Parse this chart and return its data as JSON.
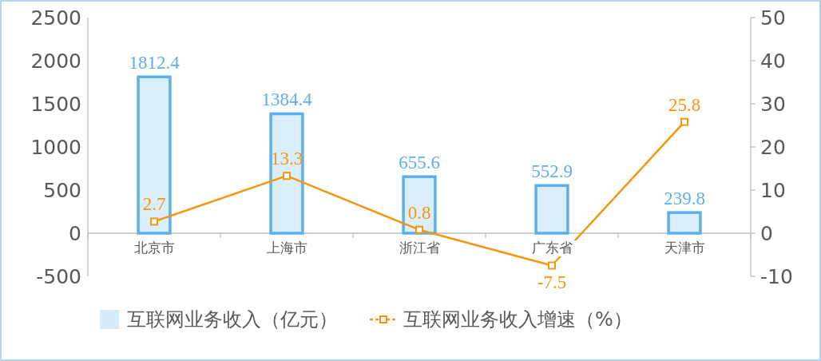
{
  "chart_data": {
    "type": "bar",
    "categories": [
      "北京市",
      "上海市",
      "浙江省",
      "广东省",
      "天津市"
    ],
    "series": [
      {
        "name": "互联网业务收入（亿元）",
        "color": "#5cb0ef",
        "values": [
          1812.4,
          1384.4,
          655.6,
          552.9,
          239.8
        ]
      },
      {
        "name": "互联网业务收入增速（%）",
        "type": "line",
        "axis": "y2",
        "color": "#f5960f",
        "values": [
          2.7,
          13.3,
          0.8,
          -7.5,
          25.8
        ]
      }
    ],
    "ylim": [
      -500,
      2500
    ],
    "yticks": [
      -500,
      0,
      500,
      1000,
      1500,
      2000,
      2500
    ],
    "y2lim": [
      -10,
      50
    ],
    "y2ticks": [
      -10,
      0,
      10,
      20,
      30,
      40,
      50
    ],
    "marker": "square",
    "data_labels": true,
    "legend": "bottom",
    "grid": false
  }
}
